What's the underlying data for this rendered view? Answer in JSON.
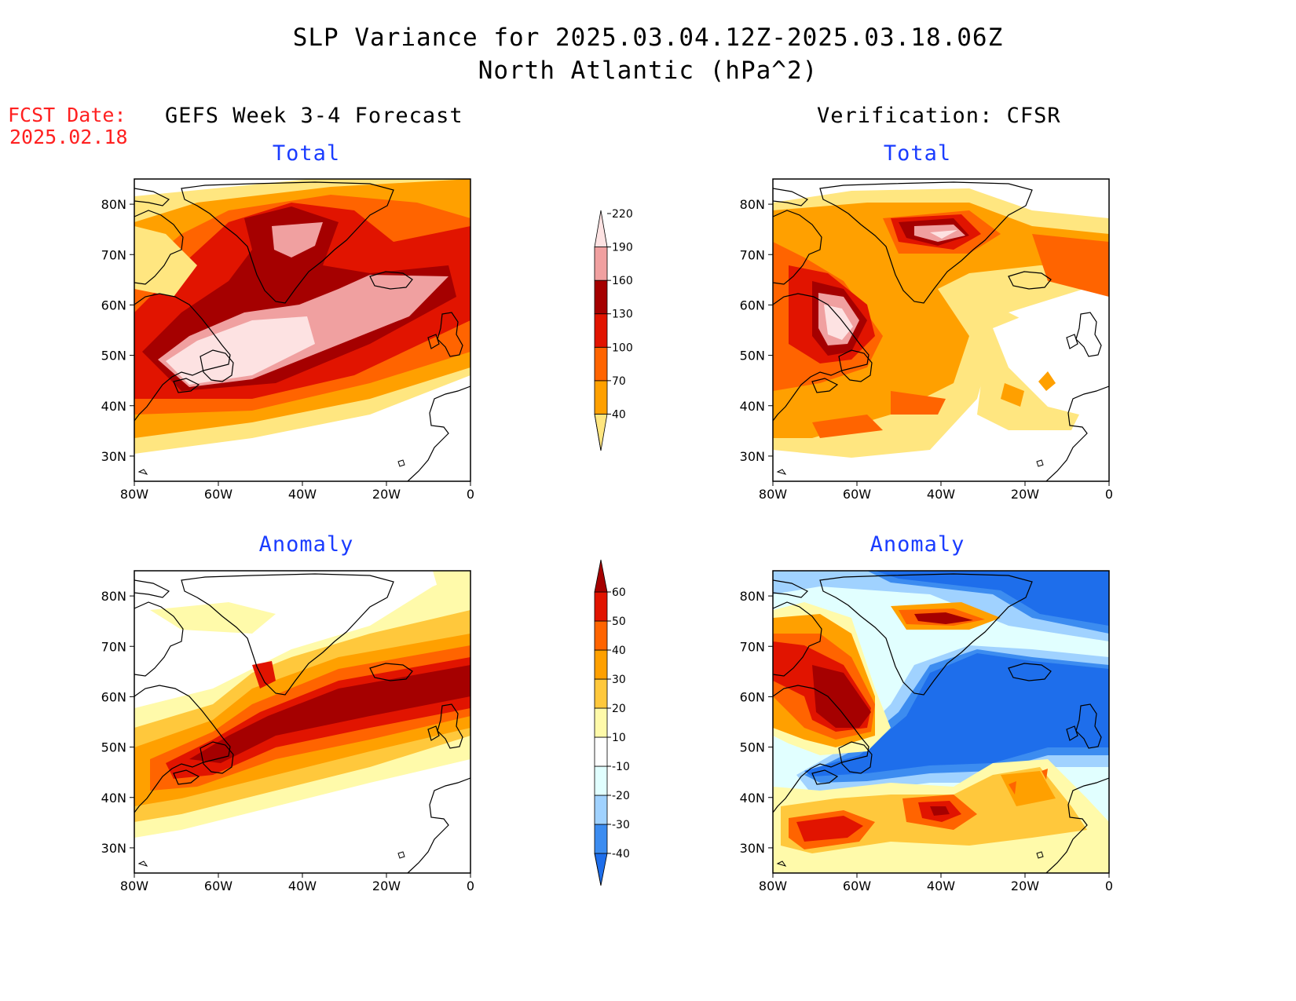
{
  "title": {
    "line1": "SLP Variance for 2025.03.04.12Z-2025.03.18.06Z",
    "line2": "North Atlantic (hPa^2)"
  },
  "fcst_date": {
    "line1": "FCST Date:",
    "line2": "2025.02.18"
  },
  "panels": {
    "left_header": "GEFS Week 3-4 Forecast",
    "right_header": "Verification: CFSR",
    "top_left_title": "Total",
    "top_right_title": "Total",
    "bottom_left_title": "Anomaly",
    "bottom_right_title": "Anomaly"
  },
  "axes": {
    "lat_labels": [
      "80N",
      "70N",
      "60N",
      "50N",
      "40N",
      "30N"
    ],
    "lon_labels": [
      "80W",
      "60W",
      "40W",
      "20W",
      "0"
    ],
    "lat_values": [
      80,
      70,
      60,
      50,
      40,
      30
    ],
    "lon_values": [
      -80,
      -60,
      -40,
      -20,
      0
    ],
    "lat_range": [
      25,
      85
    ],
    "lon_range": [
      -80,
      0
    ]
  },
  "total_colorbar": {
    "levels": [
      "40",
      "70",
      "100",
      "130",
      "160",
      "190",
      "220"
    ],
    "colors": [
      "#ffe680",
      "#ffa000",
      "#ff6400",
      "#e11400",
      "#a50000",
      "#f0a0a0",
      "#fde2e2"
    ]
  },
  "anomaly_colorbar": {
    "levels": [
      "-40",
      "-30",
      "-20",
      "-10",
      "10",
      "20",
      "30",
      "40",
      "50",
      "60"
    ],
    "colors": [
      "#1e6eeb",
      "#3c8cf0",
      "#a0d2ff",
      "#e1ffff",
      "#ffffff",
      "#fffaaa",
      "#ffc83c",
      "#ffa000",
      "#ff6400",
      "#e11400",
      "#a50000"
    ]
  }
}
